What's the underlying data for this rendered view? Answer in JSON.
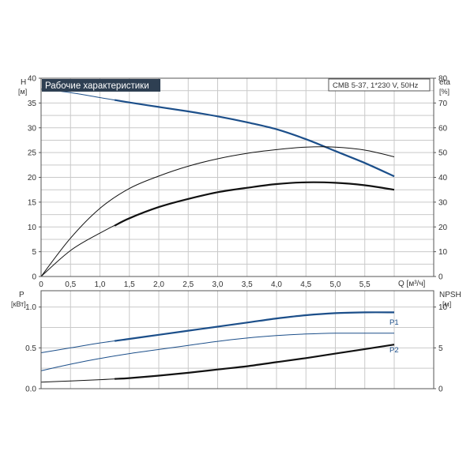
{
  "chart_data": [
    {
      "type": "line",
      "title": "Рабочие характеристики",
      "model_label": "CMB 5-37, 1*230 V, 50Hz",
      "left_axis": {
        "name": "H",
        "unit": "[м]",
        "ylim": [
          0,
          40
        ],
        "ticks": [
          0,
          5,
          10,
          15,
          20,
          25,
          30,
          35,
          40
        ]
      },
      "right_axis": {
        "name": "eta",
        "unit": "[%]",
        "ylim": [
          0,
          80
        ],
        "ticks": [
          0,
          10,
          20,
          30,
          40,
          50,
          60,
          70,
          80
        ]
      },
      "x_axis": {
        "name": "Q [м³/ч]",
        "xlim": [
          0,
          6.0
        ],
        "ticks": [
          0,
          0.5,
          1.0,
          1.5,
          2.0,
          2.5,
          3.0,
          3.5,
          4.0,
          4.5,
          5.0,
          5.5
        ],
        "tick_labels": [
          "0",
          "0,5",
          "1,0",
          "1,5",
          "2,0",
          "2,5",
          "3,0",
          "3,5",
          "4,0",
          "4,5",
          "5,0",
          "5,5"
        ]
      },
      "grid": true,
      "series": [
        {
          "id": "H",
          "color": "#1c4f8a",
          "axis": "left",
          "bold_from": 1.25,
          "x": [
            0,
            0.5,
            1.0,
            1.5,
            2.0,
            2.5,
            3.0,
            3.5,
            4.0,
            4.5,
            5.0,
            5.5,
            6.0
          ],
          "y": [
            37.8,
            37.1,
            36.1,
            35.1,
            34.2,
            33.3,
            32.3,
            31.1,
            29.7,
            27.7,
            25.3,
            22.9,
            20.2
          ]
        },
        {
          "id": "eta-pump",
          "color": "#111111",
          "axis": "right",
          "bold_from": 99,
          "x": [
            0,
            0.5,
            1.0,
            1.5,
            2.0,
            2.5,
            3.0,
            3.5,
            4.0,
            4.5,
            5.0,
            5.5,
            6.0
          ],
          "y": [
            0,
            15.5,
            27.5,
            35.5,
            40.5,
            44.5,
            47.5,
            49.7,
            51.2,
            52.2,
            52.2,
            51.0,
            48.3
          ]
        },
        {
          "id": "eta-total",
          "color": "#111111",
          "axis": "right",
          "bold_from": 1.25,
          "x": [
            0,
            0.5,
            1.0,
            1.5,
            2.0,
            2.5,
            3.0,
            3.5,
            4.0,
            4.5,
            5.0,
            5.5,
            6.0
          ],
          "y": [
            0,
            10.5,
            17.5,
            23.5,
            28.0,
            31.3,
            34.0,
            35.8,
            37.3,
            38.0,
            37.8,
            36.8,
            35.0
          ]
        }
      ]
    },
    {
      "type": "line",
      "left_axis": {
        "name": "P",
        "unit": "[кВт]",
        "ylim": [
          0,
          1.2
        ],
        "ticks": [
          0,
          0.5,
          1.0
        ],
        "tick_labels": [
          "0.0",
          "0.5",
          "1.0"
        ]
      },
      "right_axis": {
        "name": "NPSH",
        "unit": "[м]",
        "ylim": [
          0,
          12
        ],
        "ticks": [
          0,
          5,
          10
        ]
      },
      "x_axis": {
        "xlim": [
          0,
          6.0
        ],
        "ticks": [
          0,
          0.5,
          1.0,
          1.5,
          2.0,
          2.5,
          3.0,
          3.5,
          4.0,
          4.5,
          5.0,
          5.5
        ]
      },
      "grid": true,
      "series": [
        {
          "id": "P1",
          "name": "P1",
          "color": "#1c4f8a",
          "axis": "left",
          "bold_from": 1.25,
          "x": [
            0,
            0.5,
            1.0,
            1.5,
            2.0,
            2.5,
            3.0,
            3.5,
            4.0,
            4.5,
            5.0,
            5.5,
            6.0
          ],
          "y": [
            0.44,
            0.5,
            0.56,
            0.61,
            0.66,
            0.71,
            0.76,
            0.81,
            0.86,
            0.9,
            0.925,
            0.935,
            0.935
          ]
        },
        {
          "id": "P2",
          "name": "P2",
          "color": "#1c4f8a",
          "axis": "left",
          "bold_from": 99,
          "x": [
            0,
            0.5,
            1.0,
            1.5,
            2.0,
            2.5,
            3.0,
            3.5,
            4.0,
            4.5,
            5.0,
            5.5,
            6.0
          ],
          "y": [
            0.22,
            0.3,
            0.37,
            0.43,
            0.48,
            0.53,
            0.58,
            0.62,
            0.65,
            0.67,
            0.68,
            0.68,
            0.68
          ]
        },
        {
          "id": "NPSH",
          "color": "#111111",
          "axis": "right",
          "bold_from": 1.25,
          "x": [
            0,
            0.5,
            1.0,
            1.5,
            2.0,
            2.5,
            3.0,
            3.5,
            4.0,
            4.5,
            5.0,
            5.5,
            6.0
          ],
          "y": [
            0.8,
            0.95,
            1.1,
            1.3,
            1.6,
            1.95,
            2.35,
            2.75,
            3.25,
            3.75,
            4.3,
            4.85,
            5.4
          ]
        }
      ]
    }
  ]
}
